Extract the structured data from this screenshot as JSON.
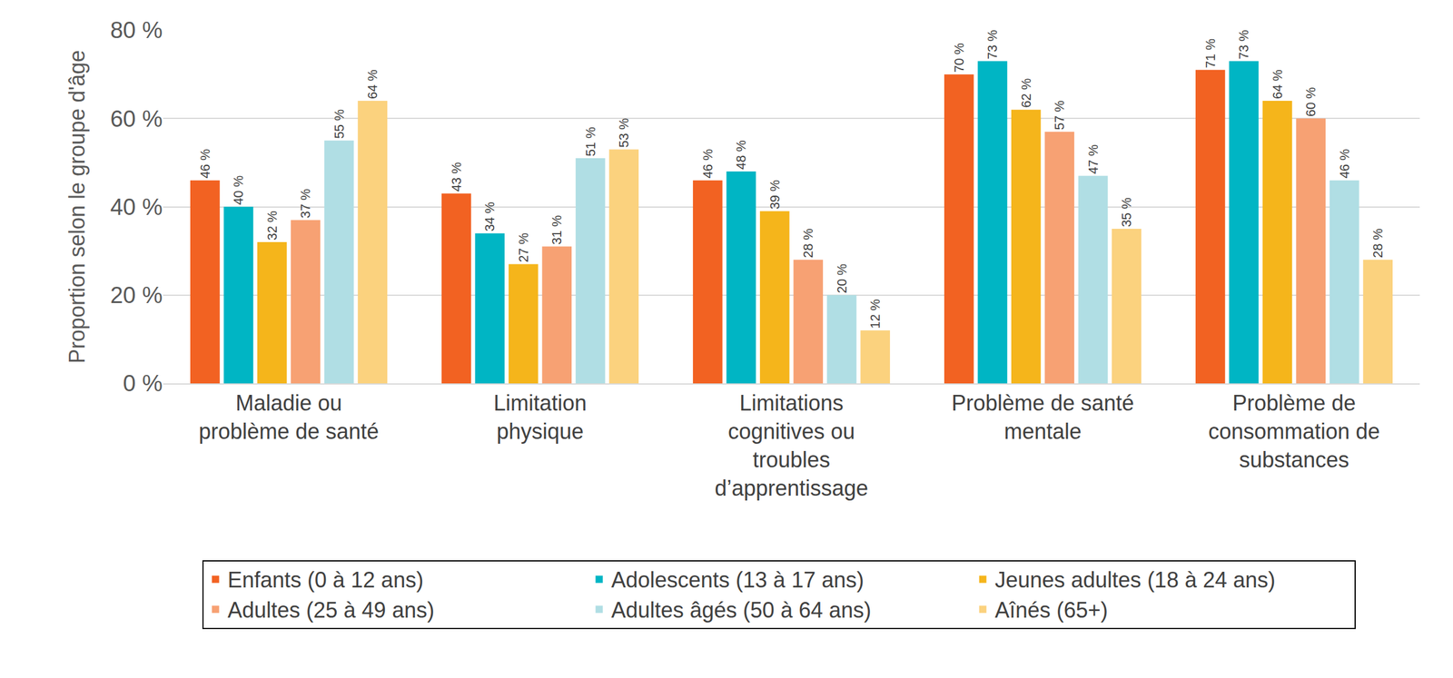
{
  "chart_data": {
    "type": "bar",
    "y_label": "Proportion selon le groupe d'âge",
    "categories": [
      "Maladie ou problème de santé",
      "Limitation physique",
      "Limitations cognitives ou troubles d’apprentissage",
      "Problème de santé mentale",
      "Problème de consommation de substances"
    ],
    "series": [
      {
        "name": "Enfants (0 à 12 ans)",
        "color": "#F26222",
        "values": [
          46,
          43,
          46,
          70,
          71
        ],
        "value_labels": [
          "46 %",
          "43 %",
          "46 %",
          "70 %",
          "71 %"
        ]
      },
      {
        "name": "Adolescents (13 à 17 ans)",
        "color": "#00B5C4",
        "values": [
          40,
          34,
          48,
          73,
          73
        ],
        "value_labels": [
          "40 %",
          "34 %",
          "48 %",
          "73 %",
          "73 %"
        ]
      },
      {
        "name": "Jeunes adultes (18 à 24 ans)",
        "color": "#F5B51B",
        "values": [
          32,
          27,
          39,
          62,
          64
        ],
        "value_labels": [
          "32 %",
          "27 %",
          "39 %",
          "62 %",
          "64 %"
        ]
      },
      {
        "name": "Adultes (25 à 49 ans)",
        "color": "#F7A173",
        "values": [
          37,
          31,
          28,
          57,
          60
        ],
        "value_labels": [
          "37 %",
          "31 %",
          "28 %",
          "57 %",
          "60 %"
        ]
      },
      {
        "name": "Adultes âgés (50 à 64 ans)",
        "color": "#B0DEE4",
        "values": [
          55,
          51,
          20,
          47,
          46
        ],
        "value_labels": [
          "55 %",
          "51 %",
          "20 %",
          "47 %",
          "46 %"
        ]
      },
      {
        "name": "Aînés (65+)",
        "color": "#FBD27E",
        "values": [
          64,
          53,
          12,
          35,
          28
        ],
        "value_labels": [
          "64 %",
          "53 %",
          "12 %",
          "35 %",
          "28 %"
        ]
      }
    ],
    "ylim": [
      0,
      80
    ],
    "yticks": [
      {
        "value": 0,
        "label": "0 %"
      },
      {
        "value": 20,
        "label": "20 %"
      },
      {
        "value": 40,
        "label": "40 %"
      },
      {
        "value": 60,
        "label": "60 %"
      },
      {
        "value": 80,
        "label": "80 %"
      }
    ],
    "grid": true,
    "legend": "bottom",
    "data_labels": true
  }
}
